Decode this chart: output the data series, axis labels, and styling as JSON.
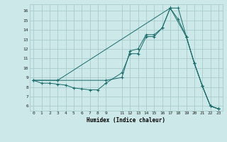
{
  "xlabel": "Humidex (Indice chaleur)",
  "bg_color": "#cce8e8",
  "grid_color": "#aacccc",
  "line_color": "#1a6b6b",
  "xlim": [
    -0.5,
    23.5
  ],
  "ylim": [
    5.5,
    16.7
  ],
  "xticks": [
    0,
    1,
    2,
    3,
    4,
    5,
    6,
    7,
    8,
    9,
    11,
    12,
    13,
    14,
    15,
    16,
    17,
    18,
    19,
    20,
    21,
    22,
    23
  ],
  "xtick_labels": [
    "0",
    "1",
    "2",
    "3",
    "4",
    "5",
    "6",
    "7",
    "8",
    "9",
    "11",
    "12",
    "13",
    "14",
    "15",
    "16",
    "17",
    "18",
    "19",
    "20",
    "21",
    "22",
    "23"
  ],
  "yticks": [
    6,
    7,
    8,
    9,
    10,
    11,
    12,
    13,
    14,
    15,
    16
  ],
  "line1_x": [
    0,
    1,
    2,
    3,
    4,
    5,
    6,
    7,
    8,
    9,
    11,
    12,
    13,
    14,
    15,
    16,
    17,
    18,
    19,
    20,
    21,
    22,
    23
  ],
  "line1_y": [
    8.7,
    8.4,
    8.4,
    8.3,
    8.2,
    7.9,
    7.8,
    7.7,
    7.7,
    8.4,
    9.5,
    11.5,
    11.5,
    13.3,
    13.3,
    14.2,
    16.3,
    16.3,
    13.3,
    10.5,
    8.1,
    6.0,
    5.7
  ],
  "line2_x": [
    0,
    3,
    9,
    11,
    12,
    13,
    14,
    15,
    16,
    17,
    18,
    19,
    20,
    21,
    22,
    23
  ],
  "line2_y": [
    8.7,
    8.7,
    8.7,
    9.0,
    11.8,
    12.0,
    13.5,
    13.5,
    14.2,
    16.3,
    15.1,
    13.3,
    10.5,
    8.1,
    6.0,
    5.7
  ],
  "line3_x": [
    0,
    3,
    17,
    19,
    20,
    21,
    22,
    23
  ],
  "line3_y": [
    8.7,
    8.7,
    16.3,
    13.3,
    10.5,
    8.1,
    6.0,
    5.7
  ]
}
